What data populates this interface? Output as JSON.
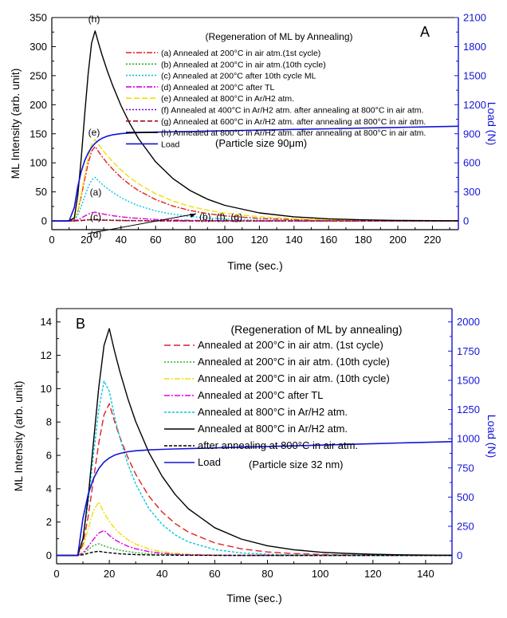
{
  "chart_data": [
    {
      "type": "line",
      "panel_label": "A",
      "legend_title": "(Regeneration of ML by Annealing)",
      "annotation": "(Particle size 90μm)",
      "xlabel": "Time (sec.)",
      "ylabel": "ML Intensity (arb. unit)",
      "y2label": "Load (N)",
      "xlim": [
        0,
        235
      ],
      "ylim": [
        -15,
        350
      ],
      "y2lim": [
        -90,
        2100
      ],
      "xticks": [
        "0",
        "20",
        "40",
        "60",
        "80",
        "100",
        "120",
        "140",
        "160",
        "180",
        "200",
        "220"
      ],
      "yticks": [
        "0",
        "50",
        "100",
        "150",
        "200",
        "250",
        "300",
        "350"
      ],
      "y2ticks": [
        "0",
        "300",
        "600",
        "900",
        "1200",
        "1500",
        "1800",
        "2100"
      ],
      "peak_labels": [
        "(h)",
        "(e)",
        "(a)",
        "(c)",
        "(d)",
        "(b), (f), (g)"
      ],
      "series": [
        {
          "name": "(a) Annealed at 200°C in air atm.(1st cycle)",
          "color": "#e02020",
          "dash": "7 2 2 2",
          "tau": 28,
          "x": [
            0,
            10,
            14,
            17,
            20,
            23,
            25,
            27,
            30,
            35,
            40,
            50,
            60,
            80,
            100,
            150,
            200,
            235
          ],
          "y": [
            0,
            0,
            0,
            0,
            0,
            0,
            0,
            0,
            0,
            0,
            0,
            0,
            0,
            0,
            0,
            0,
            0,
            0
          ]
        },
        {
          "name": "(b) Annealed at 200°C in air atm.(10th cycle)",
          "color": "#20b020",
          "dash": "2 2",
          "tau": 20,
          "x": [],
          "y": []
        },
        {
          "name": "(c) Annealed at 200°C after 10th cycle ML",
          "color": "#00c8e0",
          "dash": "2 2",
          "tau": 24,
          "x": [],
          "y": []
        },
        {
          "name": "(d) Annealed at 200°C after TL",
          "color": "#e000e0",
          "dash": "7 2 2 2",
          "tau": 20,
          "x": [],
          "y": []
        },
        {
          "name": "(e) Annealed at 800°C in Ar/H2 atm.",
          "color": "#f0e000",
          "dash": "7 3",
          "tau": 32,
          "x": [],
          "y": []
        },
        {
          "name": "(f) Annealed at 400°C in Ar/H2 atm. after annealing at 800°C in air atm.",
          "color": "#8000c0",
          "dash": "2 2",
          "tau": 15,
          "x": [],
          "y": []
        },
        {
          "name": "(g) Annealed at 600°C in Ar/H2 atm. after annealing at 800°C in air atm.",
          "color": "#a01010",
          "dash": "6 3",
          "tau": 15,
          "x": [],
          "y": []
        },
        {
          "name": "(h) Annealed at 800°C in Ar/H2 atm. after annealing at 800°C in air atm.",
          "color": "#000000",
          "dash": "",
          "tau": 30,
          "x": [],
          "y": []
        },
        {
          "name": "Load",
          "color": "#1414d8",
          "dash": "",
          "axis": "right",
          "x": [],
          "y": []
        }
      ]
    },
    {
      "type": "line",
      "panel_label": "B",
      "legend_title": "(Regeneration of ML by annealing)",
      "annotation": "(Particle size 32 nm)",
      "xlabel": "Time (sec.)",
      "ylabel": "ML Intensity (arb. unit)",
      "y2label": "Load (N)",
      "xlim": [
        0,
        150
      ],
      "ylim": [
        -0.5,
        14.8
      ],
      "y2lim": [
        -71,
        2114
      ],
      "xticks": [
        "0",
        "20",
        "40",
        "60",
        "80",
        "100",
        "120",
        "140"
      ],
      "yticks": [
        "0",
        "2",
        "4",
        "6",
        "8",
        "10",
        "12",
        "14"
      ],
      "y2ticks": [
        "0",
        "250",
        "500",
        "750",
        "1000",
        "1250",
        "1500",
        "1750",
        "2000"
      ],
      "series": [
        {
          "name": "Annealed at 200°C in air atm. (1st cycle)",
          "color": "#e02020",
          "dash": "8 4",
          "x": [],
          "y": []
        },
        {
          "name": "Annealed at 200°C in air atm. (10th cycle)",
          "color": "#20b020",
          "dash": "2 2",
          "x": [],
          "y": []
        },
        {
          "name": "Annealed at 200°C in air atm. (10th cycle)",
          "color": "#f0e000",
          "dash": "7 2 2 2",
          "x": [],
          "y": []
        },
        {
          "name": "Annealed at 200°C after TL",
          "color": "#e000e0",
          "dash": "7 2 2 2",
          "x": [],
          "y": []
        },
        {
          "name": "Annealed at 800°C in Ar/H2 atm.",
          "color": "#00c8e0",
          "dash": "3 2",
          "x": [],
          "y": []
        },
        {
          "name": "Annealed at 800°C in Ar/H2 atm.",
          "color": "#000000",
          "dash": "",
          "x": [],
          "y": []
        },
        {
          "name": "after annealing at 800°C in air atm.",
          "color": "#000000",
          "dash": "4 2",
          "x": [],
          "y": []
        },
        {
          "name": "Load",
          "color": "#1414d8",
          "dash": "",
          "axis": "right",
          "x": [],
          "y": []
        }
      ]
    }
  ]
}
